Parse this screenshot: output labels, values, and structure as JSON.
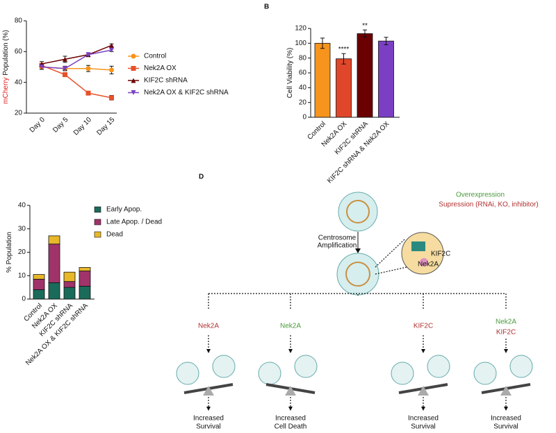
{
  "chart_data": [
    {
      "type": "line",
      "ylabel_highlight": "mCherry",
      "ylabel": "Population (%)",
      "categories": [
        "Day 0",
        "Day 5",
        "Day 10",
        "Day 15"
      ],
      "ylim": [
        20,
        80
      ],
      "yticks": [
        20,
        40,
        60,
        80
      ],
      "series": [
        {
          "name": "Control",
          "color": "#f7941d",
          "marker": "circle",
          "values": [
            50,
            49,
            49,
            48
          ],
          "errors": [
            1.5,
            1.5,
            2,
            2.5
          ]
        },
        {
          "name": "Nek2A OX",
          "color": "#e8502a",
          "marker": "square",
          "values": [
            51,
            45,
            33,
            30
          ],
          "errors": [
            1,
            1,
            1,
            1.5
          ]
        },
        {
          "name": "KIF2C shRNA",
          "color": "#6b0000",
          "marker": "triangle",
          "values": [
            52,
            55,
            58,
            64
          ],
          "errors": [
            1.5,
            2,
            1,
            1
          ]
        },
        {
          "name": "Nek2A OX & KIF2C shRNA",
          "color": "#7b3fc4",
          "marker": "triangle-down",
          "values": [
            50,
            49,
            58,
            61
          ],
          "errors": [
            1.5,
            1,
            1,
            1
          ]
        }
      ]
    },
    {
      "type": "bar",
      "panel_label": "B",
      "ylabel": "Cell Viability (%)",
      "categories": [
        "Control",
        "Nek2A OX",
        "KIF2C shRNA",
        "KIF2C shRNA & Nek2A OX"
      ],
      "values": [
        100,
        79,
        113,
        103
      ],
      "errors": [
        7,
        7,
        5,
        5
      ],
      "colors": [
        "#f7941d",
        "#e0472a",
        "#6b0000",
        "#7b3fc4"
      ],
      "significance": [
        {
          "index": 1,
          "label": "****"
        },
        {
          "index": 2,
          "label": "**"
        }
      ],
      "ylim": [
        0,
        120
      ],
      "yticks": [
        0,
        20,
        40,
        60,
        80,
        100,
        120
      ]
    },
    {
      "type": "stacked_bar",
      "ylabel": "% Population",
      "categories": [
        "Control",
        "Nek2A OX",
        "KIF2C shRNA",
        "Nek2A OX & KIF2C shRNA"
      ],
      "series": [
        {
          "name": "Early Apop.",
          "color": "#1a6b5a",
          "values": [
            4,
            7,
            5,
            5.5
          ]
        },
        {
          "name": "Late Apop. / Dead",
          "color": "#a0336a",
          "values": [
            4.5,
            16.5,
            2.5,
            6.5
          ]
        },
        {
          "name": "Dead",
          "color": "#e8b82a",
          "values": [
            2,
            3.5,
            4,
            1.5
          ]
        }
      ],
      "ylim": [
        0,
        40
      ],
      "yticks": [
        0,
        10,
        20,
        30,
        40
      ]
    }
  ],
  "diagram": {
    "panel_label": "D",
    "legend": {
      "overexpression": "Overexpression",
      "suppression": "Supression (RNAi, KO, inhibitor)"
    },
    "step": [
      "Centrosome",
      "Amplification"
    ],
    "zoom": {
      "kif2c": "KIF2C",
      "nek2a": "Nek2A"
    },
    "branches": [
      {
        "labels": [
          "Nek2A"
        ],
        "outcome": [
          "Increased",
          "Survival"
        ]
      },
      {
        "labels": [
          "Nek2A"
        ],
        "outcome": [
          "Increased",
          "Cell Death"
        ]
      },
      {
        "labels": [
          "KIF2C"
        ],
        "outcome": [
          "Increased",
          "Survival"
        ]
      },
      {
        "labels": [
          "Nek2A",
          "KIF2C"
        ],
        "outcome": [
          "Increased",
          "Survival"
        ]
      }
    ]
  }
}
